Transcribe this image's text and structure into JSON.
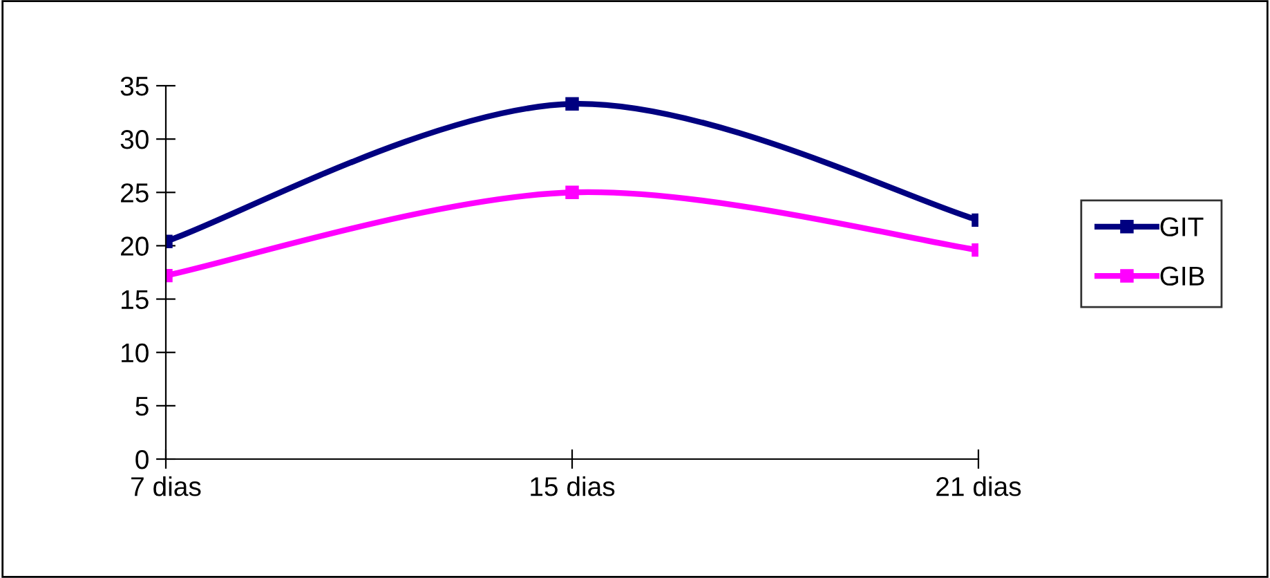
{
  "chart_data": {
    "type": "line",
    "categories": [
      "7 dias",
      "15 dias",
      "21 dias"
    ],
    "series": [
      {
        "name": "GIT",
        "color": "#000080",
        "values": [
          20.4,
          33.3,
          22.4
        ]
      },
      {
        "name": "GIB",
        "color": "#ff00ff",
        "values": [
          17.2,
          25.0,
          19.6
        ]
      }
    ],
    "ylim": [
      0,
      35
    ],
    "yticks": [
      0,
      5,
      10,
      15,
      20,
      25,
      30,
      35
    ],
    "grid": false,
    "legend": "right",
    "marker": "square",
    "line_style": "solid"
  }
}
